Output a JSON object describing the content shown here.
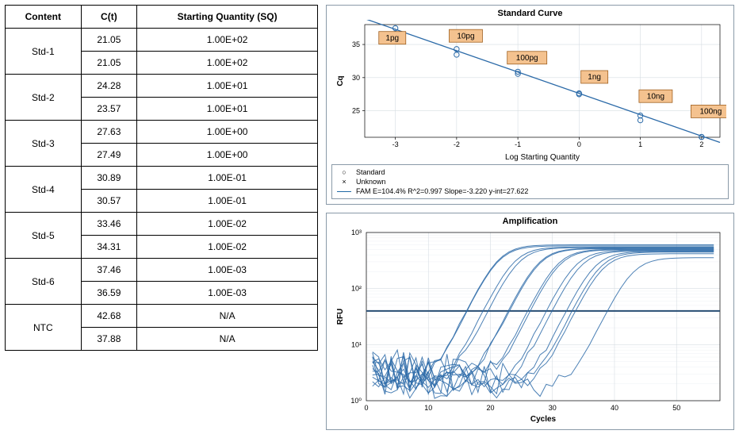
{
  "table": {
    "headers": {
      "content": "Content",
      "ct": "C(t)",
      "sq": "Starting Quantity (SQ)"
    },
    "rows": [
      {
        "content": "Std-1",
        "ct": [
          "21.05",
          "21.05"
        ],
        "sq": [
          "1.00E+02",
          "1.00E+02"
        ]
      },
      {
        "content": "Std-2",
        "ct": [
          "24.28",
          "23.57"
        ],
        "sq": [
          "1.00E+01",
          "1.00E+01"
        ]
      },
      {
        "content": "Std-3",
        "ct": [
          "27.63",
          "27.49"
        ],
        "sq": [
          "1.00E+00",
          "1.00E+00"
        ]
      },
      {
        "content": "Std-4",
        "ct": [
          "30.89",
          "30.57"
        ],
        "sq": [
          "1.00E-01",
          "1.00E-01"
        ]
      },
      {
        "content": "Std-5",
        "ct": [
          "33.46",
          "34.31"
        ],
        "sq": [
          "1.00E-02",
          "1.00E-02"
        ]
      },
      {
        "content": "Std-6",
        "ct": [
          "37.46",
          "36.59"
        ],
        "sq": [
          "1.00E-03",
          "1.00E-03"
        ]
      },
      {
        "content": "NTC",
        "ct": [
          "42.68",
          "37.88"
        ],
        "sq": [
          "N/A",
          "N/A"
        ]
      }
    ]
  },
  "standard_curve": {
    "title": "Standard Curve",
    "ylabel": "Cq",
    "xlabel": "Log Starting Quantity",
    "xlim": [
      -3.5,
      2.3
    ],
    "ylim": [
      21,
      38
    ],
    "yticks": [
      25,
      30,
      35
    ],
    "xticks": [
      -3,
      -2,
      -1,
      0,
      1,
      2
    ],
    "line_color": "#2b6aa8",
    "grid_color": "#d6dde2",
    "bg": "#ffffff",
    "slope": -3.22,
    "intercept": 27.622,
    "points": [
      {
        "logsq": -3,
        "cq": 37.46
      },
      {
        "logsq": -3,
        "cq": 36.59
      },
      {
        "logsq": -2,
        "cq": 33.46
      },
      {
        "logsq": -2,
        "cq": 34.31
      },
      {
        "logsq": -1,
        "cq": 30.89
      },
      {
        "logsq": -1,
        "cq": 30.57
      },
      {
        "logsq": 0,
        "cq": 27.63
      },
      {
        "logsq": 0,
        "cq": 27.49
      },
      {
        "logsq": 1,
        "cq": 24.28
      },
      {
        "logsq": 1,
        "cq": 23.57
      },
      {
        "logsq": 2,
        "cq": 21.05
      },
      {
        "logsq": 2,
        "cq": 21.05
      }
    ],
    "callouts": [
      {
        "logsq": -3.05,
        "cq": 36.0,
        "label": "1pg"
      },
      {
        "logsq": -1.85,
        "cq": 36.3,
        "label": "10pg"
      },
      {
        "logsq": -0.85,
        "cq": 33.0,
        "label": "100pg"
      },
      {
        "logsq": 0.25,
        "cq": 30.1,
        "label": "1ng"
      },
      {
        "logsq": 1.25,
        "cq": 27.2,
        "label": "10ng"
      },
      {
        "logsq": 2.15,
        "cq": 24.9,
        "label": "100ng"
      }
    ],
    "callout_fill": "#f4c28f",
    "callout_stroke": "#a06020",
    "legend": {
      "standard": "Standard",
      "unknown": "Unknown",
      "fam": "FAM    E=104.4% R^2=0.997 Slope=-3.220 y-int=27.622"
    }
  },
  "amplification": {
    "title": "Amplification",
    "ylabel": "RFU",
    "xlabel": "Cycles",
    "xlim": [
      0,
      57
    ],
    "ylim_log": [
      0,
      3
    ],
    "xticks": [
      0,
      10,
      20,
      30,
      40,
      50
    ],
    "yticks_exp": [
      0,
      1,
      2,
      3
    ],
    "ytick_labels": [
      "10⁰",
      "10¹",
      "10²",
      "10³"
    ],
    "curve_color": "#2b6aa8",
    "threshold_log": 1.6,
    "curves": [
      {
        "ct": 21.05,
        "plateau": 2.78
      },
      {
        "ct": 21.05,
        "plateau": 2.76
      },
      {
        "ct": 23.57,
        "plateau": 2.74
      },
      {
        "ct": 24.28,
        "plateau": 2.73
      },
      {
        "ct": 27.49,
        "plateau": 2.72
      },
      {
        "ct": 27.63,
        "plateau": 2.71
      },
      {
        "ct": 30.57,
        "plateau": 2.7
      },
      {
        "ct": 30.89,
        "plateau": 2.69
      },
      {
        "ct": 33.46,
        "plateau": 2.68
      },
      {
        "ct": 34.31,
        "plateau": 2.67
      },
      {
        "ct": 36.59,
        "plateau": 2.66
      },
      {
        "ct": 37.46,
        "plateau": 2.65
      },
      {
        "ct": 37.88,
        "plateau": 2.62
      },
      {
        "ct": 42.68,
        "plateau": 2.55
      }
    ],
    "noise_amp": 0.9,
    "noise_phase_jitter": true,
    "bg": "#ffffff"
  },
  "colors": {
    "panel_border": "#8a9aa8",
    "table_border": "#000000",
    "text": "#000000"
  }
}
